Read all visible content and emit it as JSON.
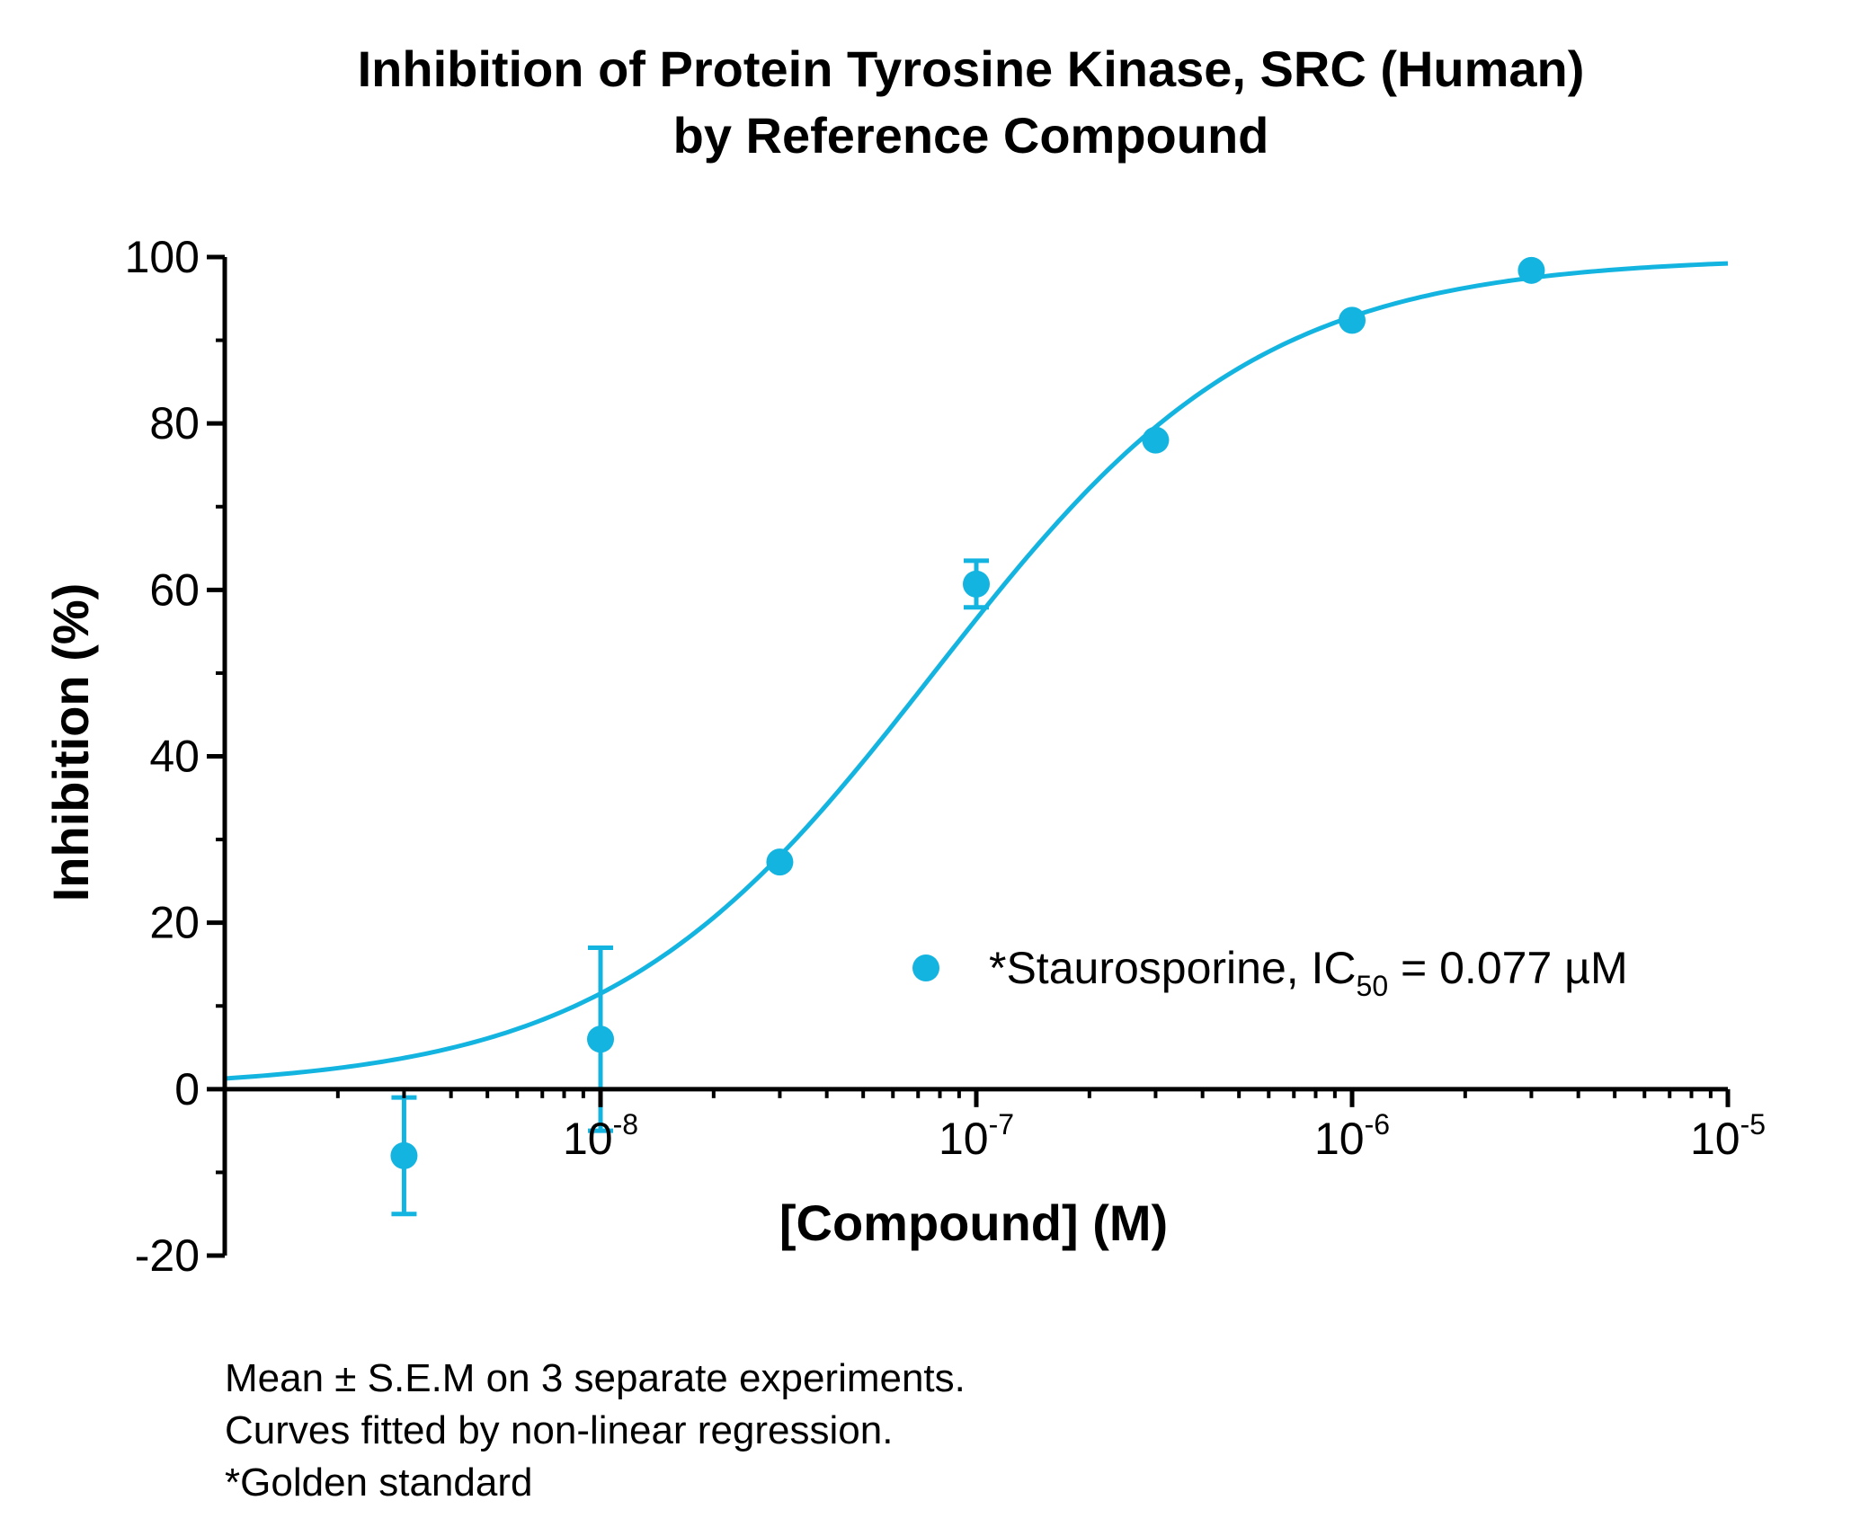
{
  "chart_data": {
    "type": "scatter",
    "title_lines": [
      "Inhibition of Protein Tyrosine Kinase, SRC (Human)",
      "by Reference Compound"
    ],
    "xlabel": "[Compound] (M)",
    "ylabel": "Inhibition (%)",
    "x_scale": "log",
    "xlim": [
      1e-09,
      1e-05
    ],
    "ylim": [
      -20,
      100
    ],
    "x_ticks": [
      {
        "base": "10",
        "exp": "-8",
        "value": 1e-08
      },
      {
        "base": "10",
        "exp": "-7",
        "value": 1e-07
      },
      {
        "base": "10",
        "exp": "-6",
        "value": 1e-06
      },
      {
        "base": "10",
        "exp": "-5",
        "value": 1e-05
      }
    ],
    "y_ticks": [
      "-20",
      "0",
      "20",
      "40",
      "60",
      "80",
      "100"
    ],
    "series": [
      {
        "name": "*Staurosporine, IC50 = 0.077 µM",
        "color": "#14b4e0",
        "points": [
          {
            "x": 3e-09,
            "y": -8,
            "err": 7
          },
          {
            "x": 1e-08,
            "y": 6,
            "err": 11
          },
          {
            "x": 3e-08,
            "y": 27.3,
            "err": 0
          },
          {
            "x": 1e-07,
            "y": 60.7,
            "err": 2.8
          },
          {
            "x": 3e-07,
            "y": 78,
            "err": 0
          },
          {
            "x": 1e-06,
            "y": 92.4,
            "err": 0
          },
          {
            "x": 3e-06,
            "y": 98.4,
            "err": 0
          }
        ],
        "fit": {
          "model": "four-parameter logistic",
          "bottom": 0,
          "top": 100,
          "ic50": 7.7e-08,
          "hill": 1
        }
      }
    ],
    "legend": {
      "label_prefix": "*Staurosporine, IC",
      "label_subscript": "50",
      "label_suffix": " = 0.077 µM",
      "placement": "lower-right"
    },
    "grid": false
  },
  "footnotes": [
    "Mean ± S.E.M on 3 separate experiments.",
    "Curves fitted by non-linear regression.",
    "*Golden standard"
  ]
}
